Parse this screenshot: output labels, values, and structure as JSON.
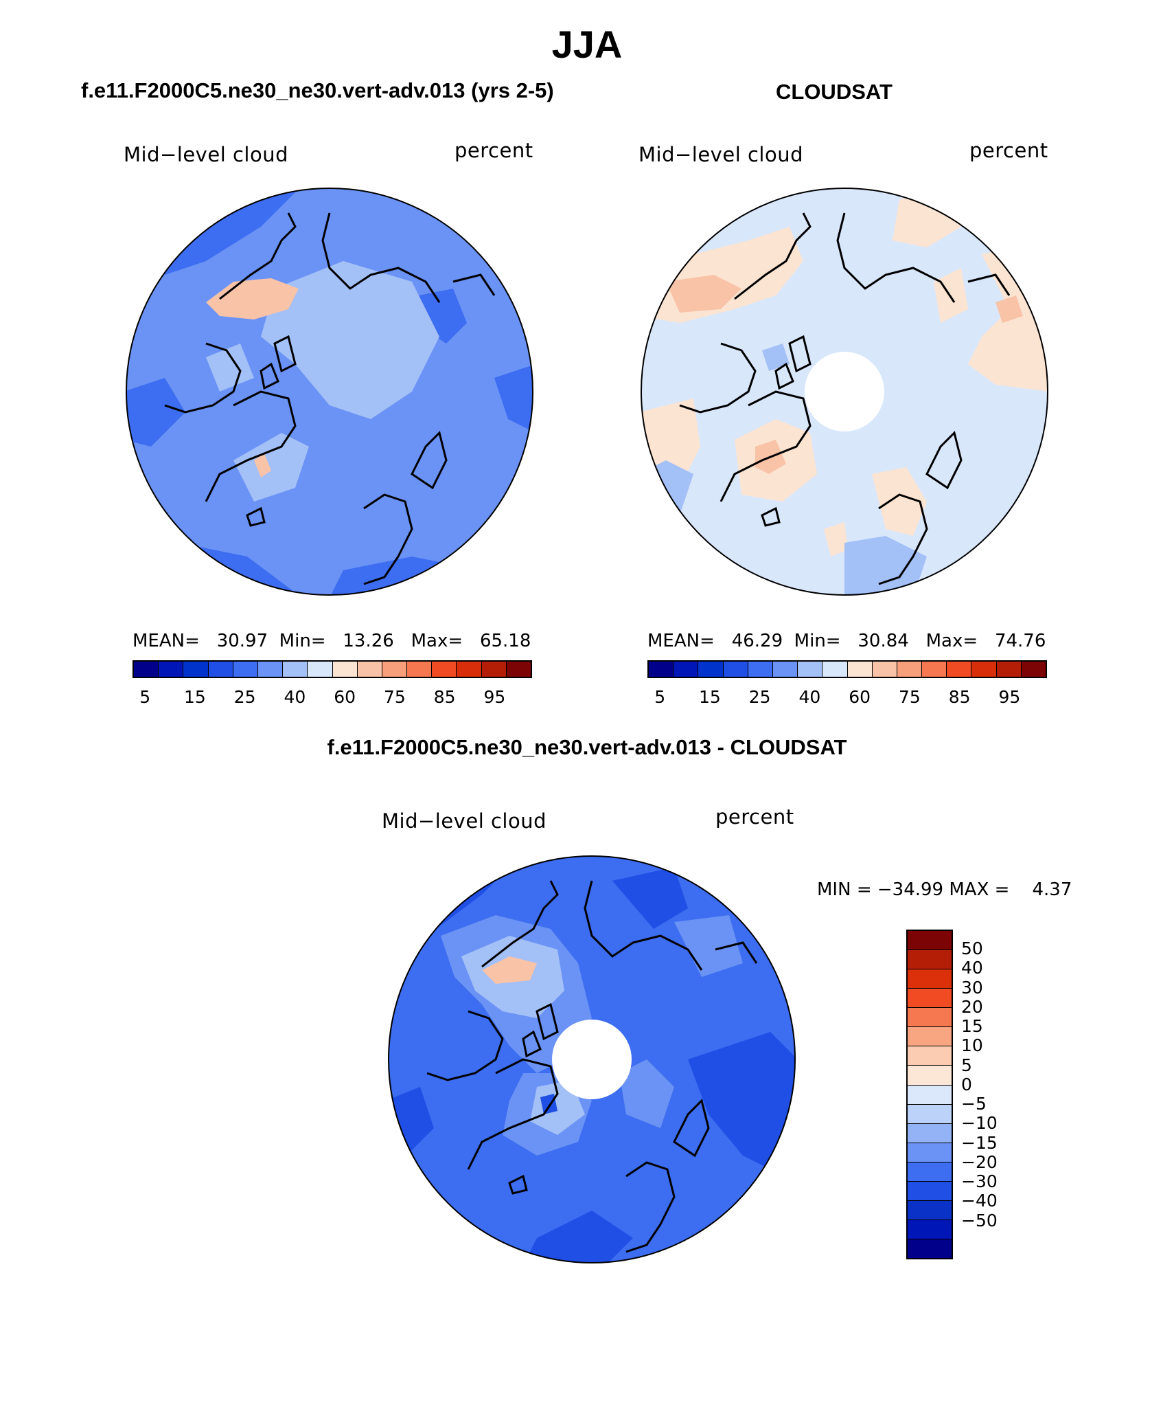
{
  "figure": {
    "season": "JJA",
    "model_title": "f.e11.F2000C5.ne30_ne30.vert-adv.013 (yrs 2-5)",
    "obs_title": "CLOUDSAT",
    "diff_title": "f.e11.F2000C5.ne30_ne30.vert-adv.013 - CLOUDSAT"
  },
  "panels": {
    "model": {
      "variable": "Mid−level cloud",
      "units": "percent",
      "mean_label": "MEAN=",
      "mean": "30.97",
      "min_label": "Min=",
      "min": "13.26",
      "max_label": "Max=",
      "max": "65.18"
    },
    "obs": {
      "variable": "Mid−level cloud",
      "units": "percent",
      "mean_label": "MEAN=",
      "mean": "46.29",
      "min_label": "Min=",
      "min": "30.84",
      "max_label": "Max=",
      "max": "74.76"
    },
    "diff": {
      "variable": "Mid−level cloud",
      "units": "percent",
      "minmax_text": "MIN = −34.99 MAX =    4.37"
    }
  },
  "colorbar_main": {
    "colors": [
      "#00008b",
      "#0016b7",
      "#0033cc",
      "#1f4fe5",
      "#3d6df0",
      "#6b93f5",
      "#a3c0f7",
      "#d9e7fb",
      "#fce4d2",
      "#f9c3a8",
      "#f79e7b",
      "#f57850",
      "#f04b23",
      "#d82f0a",
      "#b41e07",
      "#7d0404"
    ],
    "tick_labels": [
      "5",
      "15",
      "25",
      "40",
      "60",
      "75",
      "85",
      "95"
    ]
  },
  "colorbar_diff": {
    "colors_top_to_bottom": [
      "#7d0404",
      "#b41e07",
      "#dc300a",
      "#f04b23",
      "#f57850",
      "#f8a582",
      "#fbcbb2",
      "#fce7d6",
      "#dbe8fb",
      "#bcd2f8",
      "#94b3f6",
      "#6b93f5",
      "#3d6df0",
      "#1f4fe5",
      "#0a32c6",
      "#0016b7",
      "#00008b"
    ],
    "labels_top_to_bottom": [
      "50",
      "40",
      "30",
      "20",
      "15",
      "10",
      "5",
      "0",
      "−5",
      "−10",
      "−15",
      "−20",
      "−30",
      "−40",
      "−50"
    ]
  },
  "map_colors": {
    "model_field": [
      "#6b93f5",
      "#a3c0f7",
      "#3d6df0",
      "#f9c3a8"
    ],
    "obs_field": [
      "#d9e7fb",
      "#a3c0f7",
      "#fce4d2",
      "#f9c3a8"
    ],
    "diff_field": [
      "#3d6df0",
      "#1f4fe5",
      "#6b93f5",
      "#a3c0f7"
    ]
  }
}
